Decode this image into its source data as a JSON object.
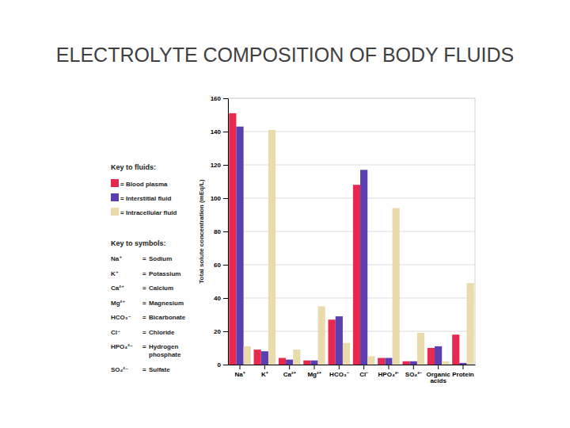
{
  "chart_data": {
    "type": "bar",
    "title": "ELECTROLYTE COMPOSITION OF BODY FLUIDS",
    "y_label": "Total solute concentration (mEq/L)",
    "categories": [
      "Na⁺",
      "K⁺",
      "Ca²⁺",
      "Mg²⁺",
      "HCO₃⁻",
      "Cl⁻",
      "HPO₄²⁻",
      "SO₄²⁻",
      "Organic acids",
      "Protein"
    ],
    "series": [
      {
        "name": "Blood plasma",
        "color": "#e8294f",
        "values": [
          151,
          9,
          4,
          2.5,
          27,
          108,
          4,
          2,
          10,
          18
        ]
      },
      {
        "name": "Interstitial fluid",
        "color": "#5b3fb0",
        "values": [
          143,
          8,
          3,
          2.5,
          29,
          117,
          4,
          2,
          11,
          1
        ]
      },
      {
        "name": "Intracellular fluid",
        "color": "#e9dbab",
        "values": [
          11,
          141,
          9,
          35,
          13,
          5,
          94,
          19,
          2,
          49
        ]
      }
    ],
    "ylim": [
      0,
      160
    ],
    "yticks": [
      0,
      20,
      40,
      60,
      80,
      100,
      120,
      140,
      160
    ],
    "grid": true,
    "legend_title": "Key to fluids:",
    "key_separator": "=",
    "symbols_title": "Key to symbols:",
    "symbols": [
      {
        "symbol": "Na⁺",
        "meaning": "Sodium"
      },
      {
        "symbol": "K⁺",
        "meaning": "Potassium"
      },
      {
        "symbol": "Ca²⁺",
        "meaning": "Calcium"
      },
      {
        "symbol": "Mg²⁺",
        "meaning": "Magnesium"
      },
      {
        "symbol": "HCO₃⁻",
        "meaning": "Bicarbonate"
      },
      {
        "symbol": "Cl⁻",
        "meaning": "Chloride"
      },
      {
        "symbol": "HPO₄²⁻",
        "meaning": "Hydrogen phosphate"
      },
      {
        "symbol": "SO₄²⁻",
        "meaning": "Sulfate"
      }
    ]
  }
}
